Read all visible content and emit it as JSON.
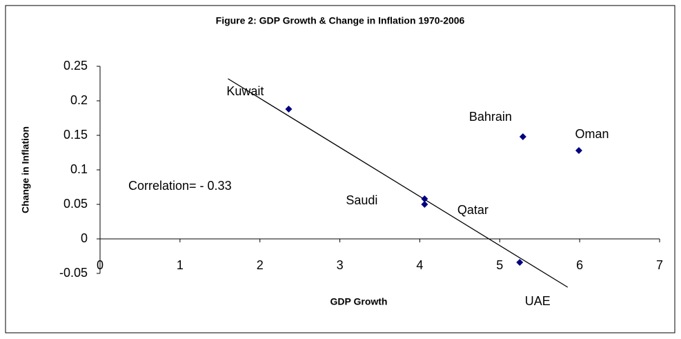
{
  "chart_data": {
    "type": "scatter",
    "title": "Figure 2: GDP Growth & Change in Inflation 1970-2006",
    "x_label": "GDP Growth",
    "y_label": "Change in Inflation",
    "annotation": "Correlation= - 0.33",
    "series": [
      {
        "color": "#000080",
        "x": [
          2.36,
          5.29,
          5.99,
          4.06,
          4.06,
          5.25
        ],
        "values": [
          0.188,
          0.148,
          0.128,
          0.058,
          0.05,
          -0.034
        ],
        "labels": [
          "Kuwait",
          "Bahrain",
          "Oman",
          "Saudi",
          "Qatar",
          "UAE"
        ]
      }
    ],
    "trendline": {
      "x": [
        1.6,
        5.85
      ],
      "values": [
        0.232,
        -0.07
      ],
      "color": "#000000"
    },
    "xlim": [
      0,
      7
    ],
    "ylim": [
      -0.05,
      0.25
    ],
    "xticks": [
      0,
      1,
      2,
      3,
      4,
      5,
      6,
      7
    ],
    "yticks": [
      -0.05,
      0,
      0.05,
      0.1,
      0.15,
      0.2,
      0.25
    ],
    "grid": false
  }
}
